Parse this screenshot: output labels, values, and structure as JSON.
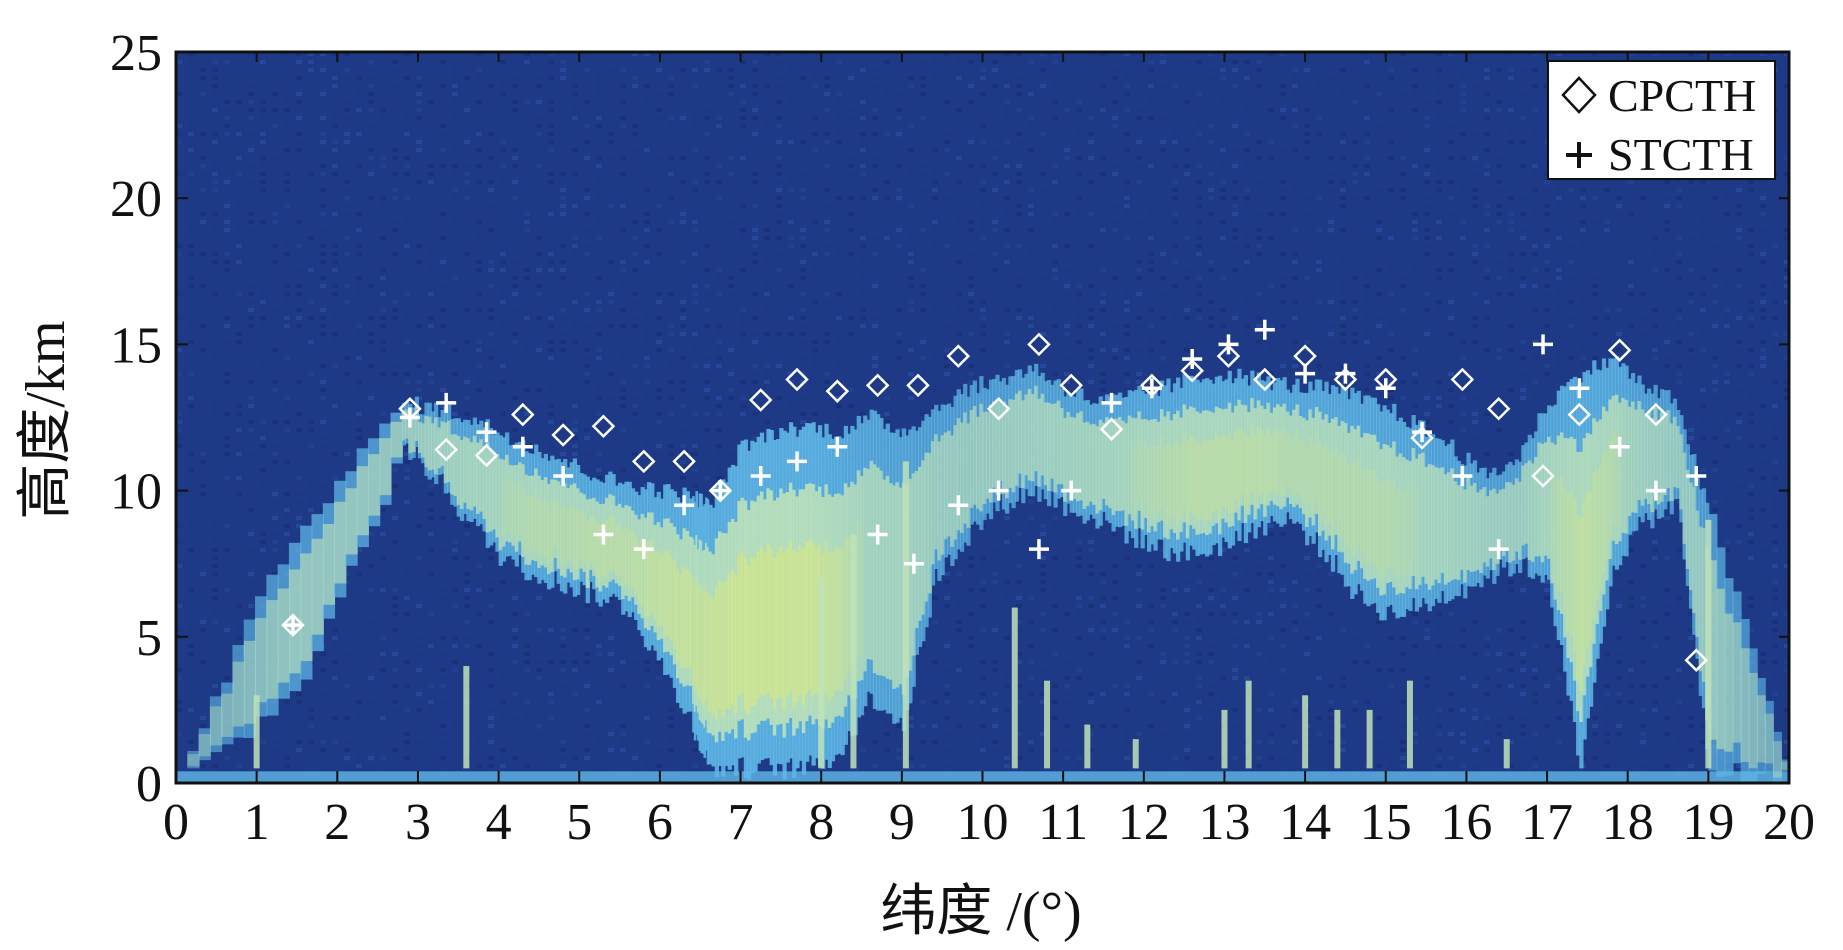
{
  "chart_data": {
    "type": "heatmap",
    "xlabel": "纬度 /(°)",
    "ylabel": "高度/km",
    "xlim": [
      0,
      20
    ],
    "ylim": [
      0,
      25
    ],
    "x_ticks": [
      0,
      1,
      2,
      3,
      4,
      5,
      6,
      7,
      8,
      9,
      10,
      11,
      12,
      13,
      14,
      15,
      16,
      17,
      18,
      19,
      20
    ],
    "y_ticks": [
      0,
      5,
      10,
      15,
      20,
      25
    ],
    "colors": {
      "background": "#1e3a86",
      "cloud_low": "#5fb7e6",
      "cloud_mid": "#bfe2b8",
      "cloud_high": "#e6ec6a",
      "marker": "#ffffff"
    },
    "legend_position": "top-right",
    "series": [
      {
        "name": "CPCTH",
        "marker": "diamond",
        "points": [
          [
            1.45,
            5.4
          ],
          [
            2.9,
            12.8
          ],
          [
            3.35,
            11.4
          ],
          [
            3.85,
            11.2
          ],
          [
            4.3,
            12.6
          ],
          [
            4.8,
            11.9
          ],
          [
            5.3,
            12.2
          ],
          [
            5.8,
            11.0
          ],
          [
            6.3,
            11.0
          ],
          [
            6.75,
            10.0
          ],
          [
            7.25,
            13.1
          ],
          [
            7.7,
            13.8
          ],
          [
            8.2,
            13.4
          ],
          [
            8.7,
            13.6
          ],
          [
            9.2,
            13.6
          ],
          [
            9.7,
            14.6
          ],
          [
            10.2,
            12.8
          ],
          [
            10.7,
            15.0
          ],
          [
            11.1,
            13.6
          ],
          [
            11.6,
            12.1
          ],
          [
            12.1,
            13.6
          ],
          [
            12.6,
            14.1
          ],
          [
            13.05,
            14.6
          ],
          [
            13.5,
            13.8
          ],
          [
            14.0,
            14.6
          ],
          [
            14.5,
            13.8
          ],
          [
            15.0,
            13.8
          ],
          [
            15.45,
            11.8
          ],
          [
            15.95,
            13.8
          ],
          [
            16.4,
            12.8
          ],
          [
            16.95,
            10.5
          ],
          [
            17.4,
            12.6
          ],
          [
            17.9,
            14.8
          ],
          [
            18.35,
            12.6
          ],
          [
            18.85,
            4.2
          ]
        ]
      },
      {
        "name": "STCTH",
        "marker": "plus",
        "points": [
          [
            1.45,
            5.4
          ],
          [
            2.9,
            12.5
          ],
          [
            3.35,
            13.0
          ],
          [
            3.85,
            12.0
          ],
          [
            4.3,
            11.5
          ],
          [
            4.8,
            10.5
          ],
          [
            5.3,
            8.5
          ],
          [
            5.8,
            8.0
          ],
          [
            6.3,
            9.5
          ],
          [
            6.75,
            10.0
          ],
          [
            7.25,
            10.5
          ],
          [
            7.7,
            11.0
          ],
          [
            8.2,
            11.5
          ],
          [
            8.7,
            8.5
          ],
          [
            9.15,
            7.5
          ],
          [
            9.7,
            9.5
          ],
          [
            10.2,
            10.0
          ],
          [
            10.7,
            8.0
          ],
          [
            11.1,
            10.0
          ],
          [
            11.6,
            13.0
          ],
          [
            12.1,
            13.5
          ],
          [
            12.6,
            14.5
          ],
          [
            13.05,
            15.0
          ],
          [
            13.5,
            15.5
          ],
          [
            14.0,
            14.0
          ],
          [
            14.5,
            14.0
          ],
          [
            15.0,
            13.5
          ],
          [
            15.45,
            12.0
          ],
          [
            15.95,
            10.5
          ],
          [
            16.4,
            8.0
          ],
          [
            16.95,
            15.0
          ],
          [
            17.4,
            13.5
          ],
          [
            17.9,
            11.5
          ],
          [
            18.35,
            10.0
          ],
          [
            18.85,
            10.5
          ]
        ]
      }
    ],
    "cloud_profiles": [
      [
        0,
        0,
        0.5,
        0
      ],
      [
        1.4,
        3.0,
        8.5,
        0.5
      ],
      [
        2.8,
        11.5,
        13.0,
        0.5
      ],
      [
        3.2,
        10.5,
        12.8,
        0.6
      ],
      [
        3.6,
        9.0,
        12.5,
        0.7
      ],
      [
        4.0,
        7.8,
        12.0,
        0.75
      ],
      [
        4.4,
        7.2,
        11.5,
        0.8
      ],
      [
        4.8,
        6.8,
        11.0,
        0.8
      ],
      [
        5.2,
        6.4,
        10.5,
        0.85
      ],
      [
        5.6,
        6.0,
        10.2,
        0.85
      ],
      [
        6.0,
        4.0,
        10.0,
        0.9
      ],
      [
        6.4,
        2.0,
        9.8,
        0.95
      ],
      [
        6.6,
        0.5,
        9.5,
        0.95
      ],
      [
        7.0,
        0.5,
        11.5,
        1.0
      ],
      [
        7.4,
        0.5,
        12.0,
        1.0
      ],
      [
        7.8,
        0.5,
        12.2,
        1.0
      ],
      [
        8.2,
        1.0,
        12.0,
        0.9
      ],
      [
        8.6,
        3.0,
        12.5,
        0.7
      ],
      [
        9.0,
        2.0,
        12.0,
        0.7
      ],
      [
        9.4,
        7.0,
        12.8,
        0.55
      ],
      [
        9.8,
        8.5,
        13.5,
        0.5
      ],
      [
        10.2,
        9.5,
        13.8,
        0.55
      ],
      [
        10.6,
        10.0,
        14.2,
        0.6
      ],
      [
        11.0,
        9.5,
        13.5,
        0.65
      ],
      [
        11.4,
        9.0,
        13.0,
        0.7
      ],
      [
        11.8,
        8.5,
        13.2,
        0.75
      ],
      [
        12.2,
        8.0,
        13.5,
        0.8
      ],
      [
        12.6,
        7.8,
        13.8,
        0.85
      ],
      [
        13.0,
        8.2,
        14.0,
        0.85
      ],
      [
        13.4,
        8.8,
        13.8,
        0.85
      ],
      [
        13.8,
        9.0,
        13.6,
        0.8
      ],
      [
        14.2,
        8.0,
        13.5,
        0.8
      ],
      [
        14.6,
        6.5,
        13.2,
        0.8
      ],
      [
        15.0,
        5.8,
        12.8,
        0.8
      ],
      [
        15.4,
        6.0,
        12.2,
        0.75
      ],
      [
        15.8,
        6.5,
        11.5,
        0.7
      ],
      [
        16.2,
        7.0,
        10.5,
        0.6
      ],
      [
        16.6,
        7.5,
        11.0,
        0.55
      ],
      [
        17.0,
        7.0,
        13.0,
        0.75
      ],
      [
        17.4,
        0.5,
        14.0,
        0.9
      ],
      [
        17.8,
        7.5,
        14.5,
        0.8
      ],
      [
        18.2,
        9.0,
        13.5,
        0.6
      ],
      [
        18.6,
        9.5,
        13.0,
        0.5
      ],
      [
        19.0,
        0.5,
        9.0,
        0.5
      ],
      [
        20.0,
        0,
        0,
        0
      ]
    ],
    "spikes": [
      [
        1.0,
        0.5,
        3.0
      ],
      [
        3.6,
        0.5,
        4.0
      ],
      [
        8.0,
        0.5,
        7.0
      ],
      [
        8.4,
        0.5,
        8.5
      ],
      [
        9.05,
        0.5,
        11.0
      ],
      [
        10.4,
        0.5,
        6.0
      ],
      [
        10.8,
        0.5,
        3.5
      ],
      [
        11.3,
        0.5,
        2.0
      ],
      [
        11.9,
        0.5,
        1.5
      ],
      [
        13.0,
        0.5,
        2.5
      ],
      [
        13.3,
        0.5,
        3.5
      ],
      [
        14.0,
        0.5,
        3.0
      ],
      [
        14.4,
        0.5,
        2.5
      ],
      [
        14.8,
        0.5,
        2.5
      ],
      [
        15.3,
        0.5,
        3.5
      ],
      [
        16.5,
        0.5,
        1.5
      ],
      [
        19.0,
        0.5,
        9.0
      ]
    ]
  }
}
